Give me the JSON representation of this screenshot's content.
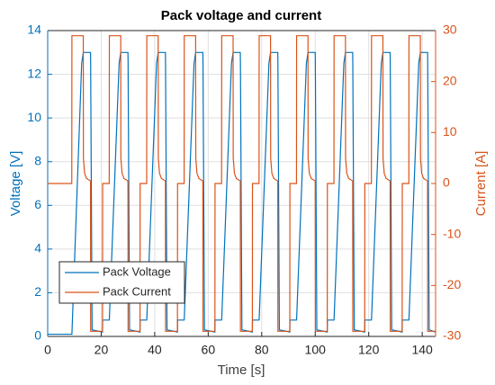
{
  "chart_data": {
    "type": "line",
    "title": "Pack voltage and current",
    "xlabel": "Time [s]",
    "ylabel": "Voltage [V]",
    "y2label": "Current [A]",
    "x": [
      0,
      9,
      9.05,
      12.7,
      13.3,
      13.35,
      13.8,
      14.5,
      16,
      16.05,
      16.6,
      20.5,
      20.55,
      23,
      23.05,
      26.7,
      27.3,
      27.35,
      27.8,
      28.5,
      30,
      30.05,
      30.6,
      34.5,
      34.55,
      37,
      37.05,
      40.7,
      41.3,
      41.35,
      41.8,
      42.5,
      44,
      44.05,
      44.6,
      48.5,
      48.55,
      51,
      51.05,
      54.7,
      55.3,
      55.35,
      55.8,
      56.5,
      58,
      58.05,
      58.6,
      62.5,
      62.55,
      65,
      65.05,
      68.7,
      69.3,
      69.35,
      69.8,
      70.5,
      72,
      72.05,
      72.6,
      76.5,
      76.55,
      79,
      79.05,
      82.7,
      83.3,
      83.35,
      83.8,
      84.5,
      86,
      86.05,
      86.6,
      90.5,
      90.55,
      93,
      93.05,
      96.7,
      97.3,
      97.35,
      97.8,
      98.5,
      100,
      100.05,
      100.6,
      104.5,
      104.55,
      107,
      107.05,
      110.7,
      111.3,
      111.35,
      111.8,
      112.5,
      114,
      114.05,
      114.6,
      118.5,
      118.55,
      121,
      121.05,
      124.7,
      125.3,
      125.35,
      125.8,
      126.5,
      128,
      128.05,
      128.6,
      132.5,
      132.55,
      135,
      135.05,
      138.7,
      139.3,
      139.35,
      139.8,
      140.5,
      142,
      142.05,
      142.6,
      145
    ],
    "series": [
      {
        "name": "Pack Voltage",
        "color": "#0072bd",
        "axis": "y",
        "values": [
          0.1,
          0.1,
          0.1,
          12.5,
          13,
          13,
          13,
          13,
          13,
          12.5,
          0.3,
          0.2,
          0.75,
          0.75,
          0.8,
          12.5,
          13,
          13,
          13,
          13,
          13,
          12.5,
          0.3,
          0.2,
          0.75,
          0.75,
          0.8,
          12.5,
          13,
          13,
          13,
          13,
          13,
          12.5,
          0.3,
          0.2,
          0.75,
          0.75,
          0.8,
          12.5,
          13,
          13,
          13,
          13,
          13,
          12.5,
          0.3,
          0.2,
          0.75,
          0.75,
          0.8,
          12.5,
          13,
          13,
          13,
          13,
          13,
          12.5,
          0.3,
          0.2,
          0.75,
          0.75,
          0.8,
          12.5,
          13,
          13,
          13,
          13,
          13,
          12.5,
          0.3,
          0.2,
          0.75,
          0.75,
          0.8,
          12.5,
          13,
          13,
          13,
          13,
          13,
          12.5,
          0.3,
          0.2,
          0.75,
          0.75,
          0.8,
          12.5,
          13,
          13,
          13,
          13,
          13,
          12.5,
          0.3,
          0.2,
          0.75,
          0.75,
          0.8,
          12.5,
          13,
          13,
          13,
          13,
          13,
          12.5,
          0.3,
          0.2,
          0.75,
          0.75,
          0.8,
          12.5,
          13,
          13,
          13,
          13,
          13,
          12.5,
          0.3,
          0.2
        ]
      },
      {
        "name": "Pack Current",
        "color": "#d95319",
        "axis": "y2",
        "values": [
          0,
          0,
          29,
          29,
          29,
          5,
          2,
          1,
          0.5,
          -29,
          -29,
          -29,
          0,
          0,
          29,
          29,
          29,
          5,
          2,
          1,
          0.5,
          -29,
          -29,
          -29,
          0,
          0,
          29,
          29,
          29,
          5,
          2,
          1,
          0.5,
          -29,
          -29,
          -29,
          0,
          0,
          29,
          29,
          29,
          5,
          2,
          1,
          0.5,
          -29,
          -29,
          -29,
          0,
          0,
          29,
          29,
          29,
          5,
          2,
          1,
          0.5,
          -29,
          -29,
          -29,
          0,
          0,
          29,
          29,
          29,
          5,
          2,
          1,
          0.5,
          -29,
          -29,
          -29,
          0,
          0,
          29,
          29,
          29,
          5,
          2,
          1,
          0.5,
          -29,
          -29,
          -29,
          0,
          0,
          29,
          29,
          29,
          5,
          2,
          1,
          0.5,
          -29,
          -29,
          -29,
          0,
          0,
          29,
          29,
          29,
          5,
          2,
          1,
          0.5,
          -29,
          -29,
          -29,
          0,
          0,
          29,
          29,
          29,
          5,
          2,
          1,
          0.5,
          -29,
          -29,
          -29
        ]
      }
    ],
    "xlim": [
      0,
      145
    ],
    "xticks": [
      0,
      20,
      40,
      60,
      80,
      100,
      120,
      140
    ],
    "ylim": [
      0,
      14
    ],
    "yticks": [
      0,
      2,
      4,
      6,
      8,
      10,
      12,
      14
    ],
    "y2lim": [
      -30,
      30
    ],
    "y2ticks": [
      -30,
      -20,
      -10,
      0,
      10,
      20,
      30
    ],
    "grid": true,
    "legend": "southwest"
  }
}
